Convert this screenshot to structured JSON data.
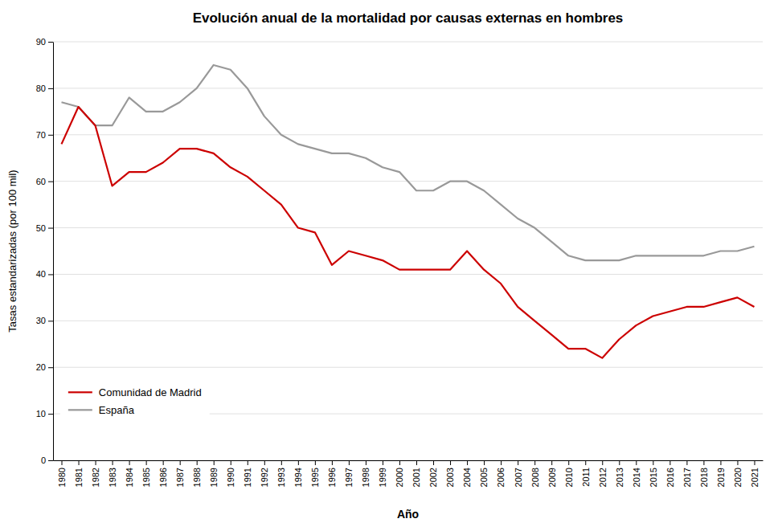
{
  "chart_data": {
    "type": "line",
    "title": "Evolución anual de la mortalidad por causas externas en hombres",
    "xlabel": "Año",
    "ylabel": "Tasas estandarizadas (por 100 mil)",
    "x": [
      1980,
      1981,
      1982,
      1983,
      1984,
      1985,
      1986,
      1987,
      1988,
      1989,
      1990,
      1991,
      1992,
      1993,
      1994,
      1995,
      1996,
      1997,
      1998,
      1999,
      2000,
      2001,
      2002,
      2003,
      2004,
      2005,
      2006,
      2007,
      2008,
      2009,
      2010,
      2011,
      2012,
      2013,
      2014,
      2015,
      2016,
      2017,
      2018,
      2019,
      2020,
      2021
    ],
    "series": [
      {
        "name": "Comunidad de Madrid",
        "color": "#cc0000",
        "values": [
          68,
          76,
          72,
          59,
          62,
          62,
          64,
          67,
          67,
          66,
          63,
          61,
          58,
          55,
          50,
          49,
          42,
          45,
          44,
          43,
          41,
          41,
          41,
          41,
          45,
          41,
          38,
          33,
          30,
          27,
          24,
          24,
          22,
          26,
          29,
          31,
          32,
          33,
          33,
          34,
          35,
          33
        ]
      },
      {
        "name": "España",
        "color": "#999999",
        "values": [
          77,
          76,
          72,
          72,
          78,
          75,
          75,
          77,
          80,
          85,
          84,
          80,
          74,
          70,
          68,
          67,
          66,
          66,
          65,
          63,
          62,
          58,
          58,
          60,
          60,
          58,
          55,
          52,
          50,
          47,
          44,
          43,
          43,
          43,
          44,
          44,
          44,
          44,
          44,
          45,
          45,
          46
        ]
      }
    ],
    "xlim": [
      1979.5,
      2021.5
    ],
    "xticks": [
      1980,
      1981,
      1982,
      1983,
      1984,
      1985,
      1986,
      1987,
      1988,
      1989,
      1990,
      1991,
      1992,
      1993,
      1994,
      1995,
      1996,
      1997,
      1998,
      1999,
      2000,
      2001,
      2002,
      2003,
      2004,
      2005,
      2006,
      2007,
      2008,
      2009,
      2010,
      2011,
      2012,
      2013,
      2014,
      2015,
      2016,
      2017,
      2018,
      2019,
      2020,
      2021
    ],
    "ylim": [
      0,
      90
    ],
    "yticks": [
      0,
      10,
      20,
      30,
      40,
      50,
      60,
      70,
      80,
      90
    ],
    "grid": "y",
    "legend": "lower left"
  }
}
